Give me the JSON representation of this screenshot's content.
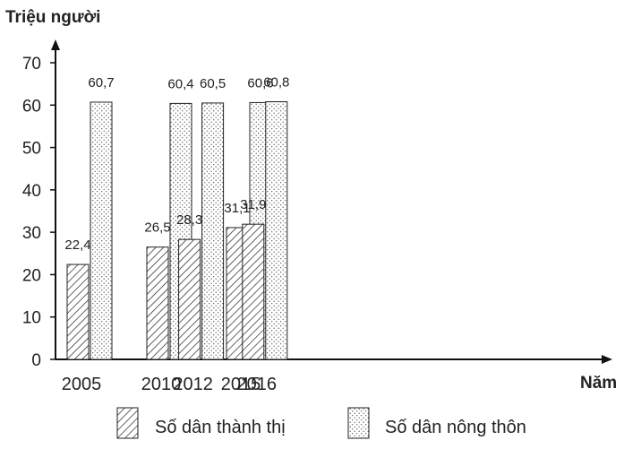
{
  "chart_data": {
    "type": "bar",
    "ylabel": "Triệu người",
    "xlabel": "Năm",
    "categories": [
      "2005",
      "2010",
      "2012",
      "2015",
      "2016"
    ],
    "category_values": [
      2005,
      2010,
      2012,
      2015,
      2016
    ],
    "ylim": [
      0,
      70
    ],
    "yticks": [
      0,
      10,
      20,
      30,
      40,
      50,
      60,
      70
    ],
    "series": [
      {
        "name": "Số dân thành thị",
        "values": [
          22.4,
          26.5,
          28.3,
          31.1,
          31.9
        ],
        "labels": [
          "22,4",
          "26,5",
          "28,3",
          "31,1",
          "31,9"
        ],
        "pattern": "hatch"
      },
      {
        "name": "Số dân nông thôn",
        "values": [
          60.7,
          60.4,
          60.5,
          60.6,
          60.8
        ],
        "labels": [
          "60,7",
          "60,4",
          "60,5",
          "60,6",
          "60,8"
        ],
        "pattern": "dots"
      }
    ],
    "grid": false,
    "legend": "bottom"
  }
}
